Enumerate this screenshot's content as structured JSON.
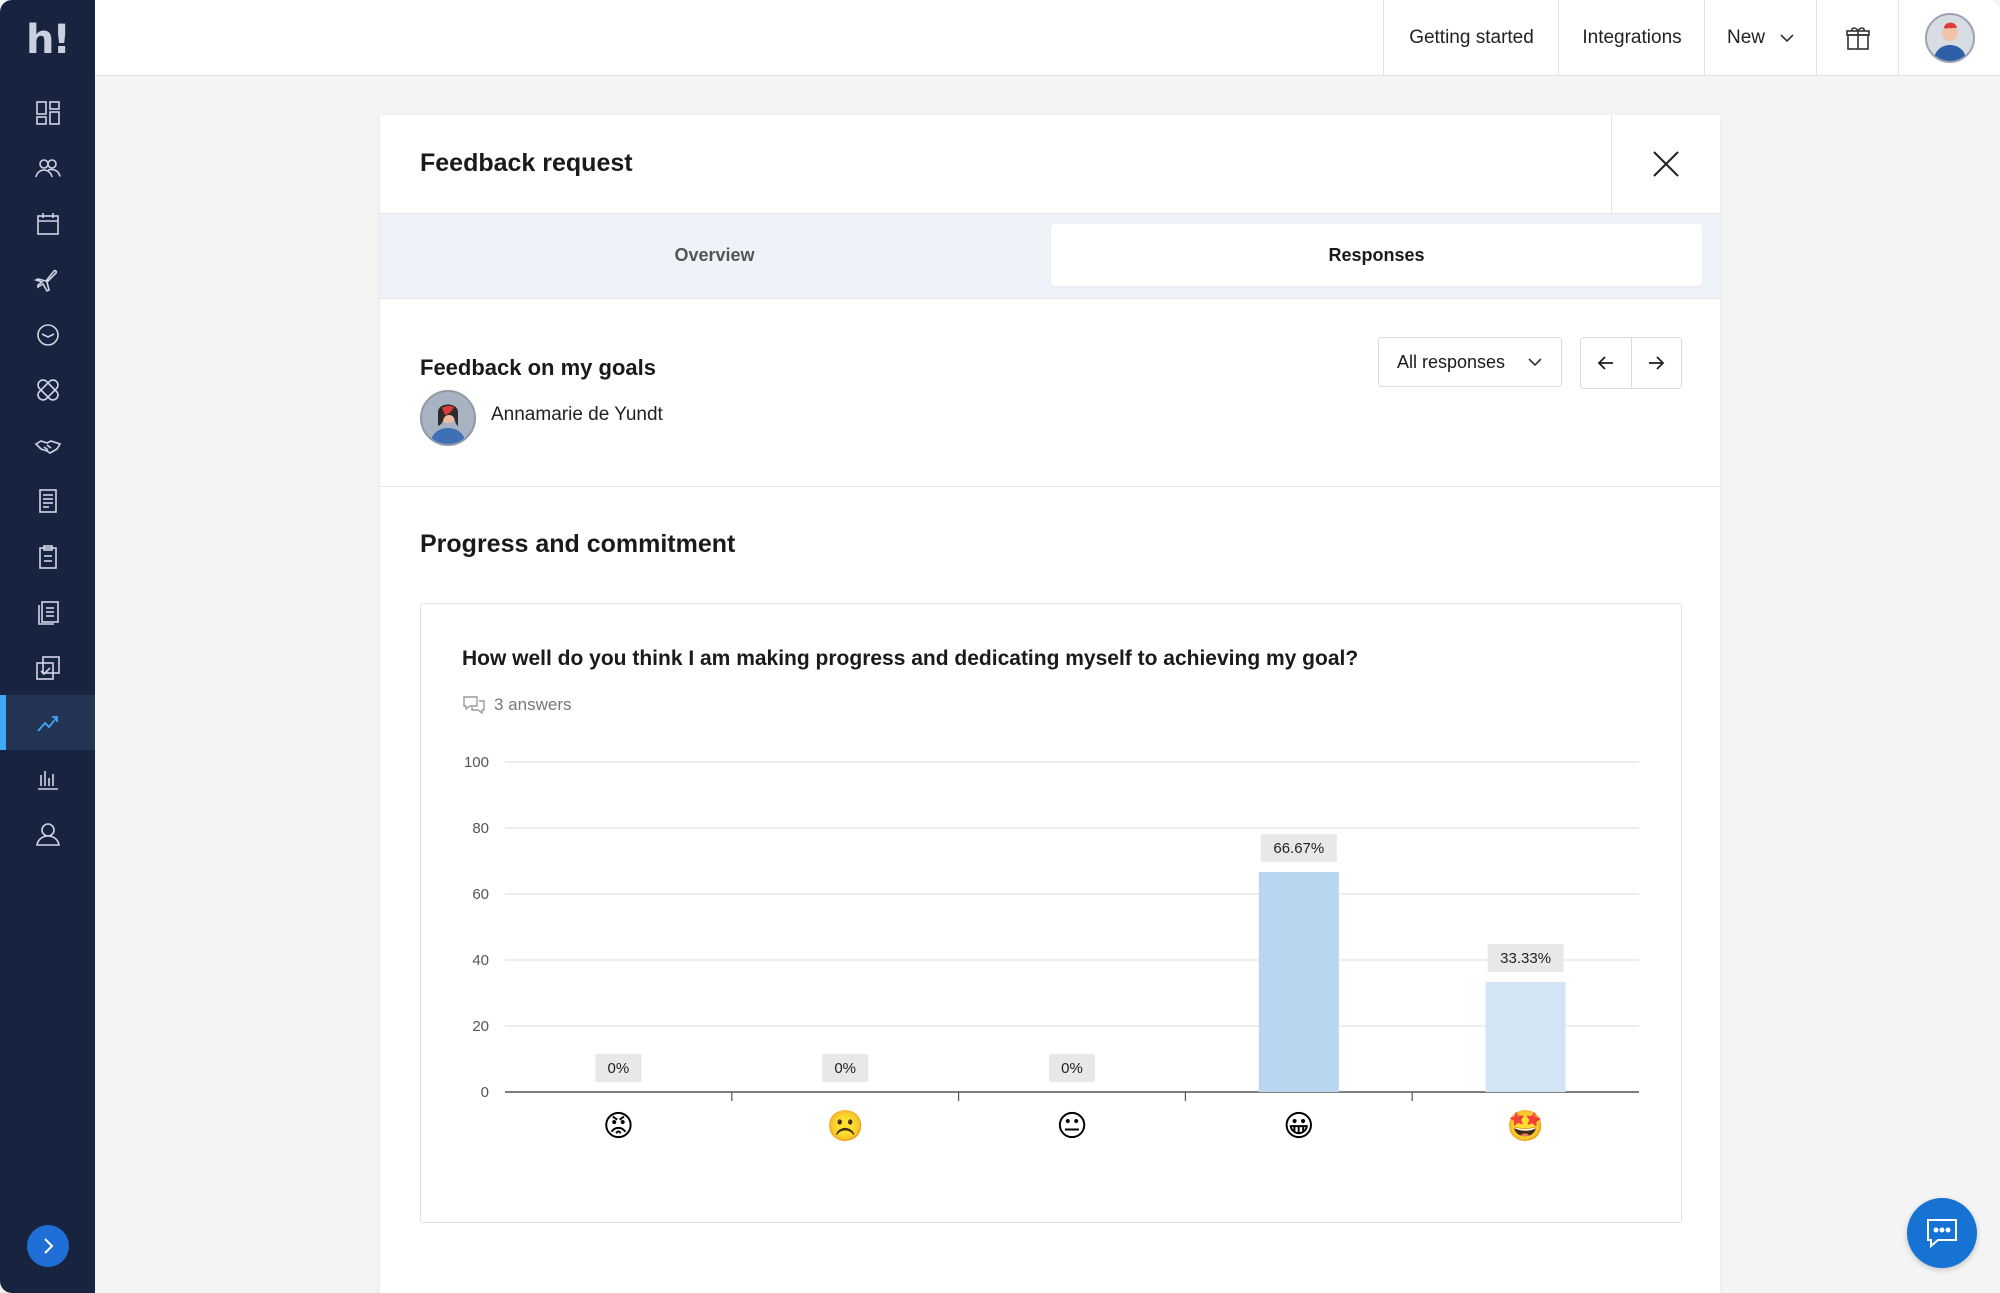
{
  "sidebar": {
    "logo": "h!",
    "items": [
      {
        "name": "dashboard-icon"
      },
      {
        "name": "people-icon"
      },
      {
        "name": "calendar-icon"
      },
      {
        "name": "plane-icon"
      },
      {
        "name": "clock-icon"
      },
      {
        "name": "bandage-icon"
      },
      {
        "name": "handshake-icon"
      },
      {
        "name": "receipt-icon"
      },
      {
        "name": "clipboard-icon"
      },
      {
        "name": "documents-icon"
      },
      {
        "name": "checklist-icon"
      },
      {
        "name": "performance-icon",
        "active": true
      },
      {
        "name": "analytics-icon"
      },
      {
        "name": "user-icon"
      }
    ],
    "accent": "#3fa9f5"
  },
  "topbar": {
    "getting_started": "Getting started",
    "integrations": "Integrations",
    "new": "New"
  },
  "modal": {
    "title": "Feedback request",
    "tabs": {
      "overview": "Overview",
      "responses": "Responses"
    },
    "subject": "Feedback on my goals",
    "person_name": "Annamarie de Yundt",
    "filter_value": "All responses",
    "section_title": "Progress and commitment",
    "question": "How well do you think I am making progress and dedicating myself to achieving my goal?",
    "answers_count": "3 answers"
  },
  "chart_data": {
    "type": "bar",
    "categories": [
      "😡",
      "☹️",
      "😐",
      "😀",
      "🤩"
    ],
    "values": [
      0,
      0,
      0,
      66.67,
      33.33
    ],
    "data_labels": [
      "0%",
      "0%",
      "0%",
      "66.67%",
      "33.33%"
    ],
    "ylim": [
      0,
      100
    ],
    "yticks": [
      "0",
      "20",
      "40",
      "60",
      "80",
      "100"
    ],
    "grid": true,
    "bar_colors": [
      "#b9d6f0",
      "#b9d6f0",
      "#b9d6f0",
      "#b9d6f0",
      "#d3e5f4"
    ]
  }
}
